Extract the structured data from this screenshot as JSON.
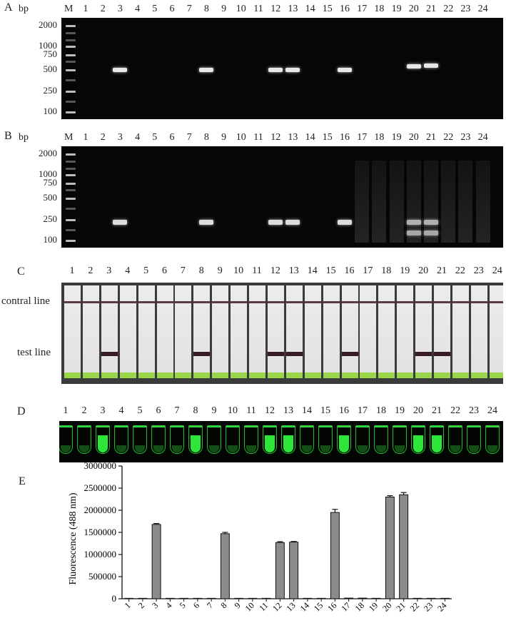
{
  "panels": {
    "a": "A",
    "b": "B",
    "c": "C",
    "d": "D",
    "e": "E"
  },
  "gel_a": {
    "bp_label": "bp",
    "marker_label": "M",
    "lanes": [
      "1",
      "2",
      "3",
      "4",
      "5",
      "6",
      "7",
      "8",
      "9",
      "10",
      "11",
      "12",
      "13",
      "14",
      "15",
      "16",
      "17",
      "18",
      "19",
      "20",
      "21",
      "22",
      "23",
      "24"
    ],
    "ladder": [
      "2000",
      "1000",
      "750",
      "500",
      "250",
      "100"
    ],
    "positive_lanes": [
      "3",
      "8",
      "12",
      "13",
      "16",
      "20",
      "21"
    ]
  },
  "gel_b": {
    "bp_label": "bp",
    "marker_label": "M",
    "lanes": [
      "1",
      "2",
      "3",
      "4",
      "5",
      "6",
      "7",
      "8",
      "9",
      "10",
      "11",
      "12",
      "13",
      "14",
      "15",
      "16",
      "17",
      "18",
      "19",
      "20",
      "21",
      "22",
      "23",
      "24"
    ],
    "ladder": [
      "2000",
      "1000",
      "750",
      "500",
      "250",
      "100"
    ],
    "positive_lanes": [
      "3",
      "8",
      "12",
      "13",
      "16",
      "20",
      "21"
    ]
  },
  "strips": {
    "lanes": [
      "1",
      "2",
      "3",
      "4",
      "5",
      "6",
      "7",
      "8",
      "9",
      "10",
      "11",
      "12",
      "13",
      "14",
      "15",
      "16",
      "17",
      "18",
      "19",
      "20",
      "21",
      "22",
      "23",
      "24"
    ],
    "control_label": "contral line",
    "test_label": "test line",
    "positive_lanes": [
      "3",
      "8",
      "12",
      "13",
      "16",
      "20",
      "21"
    ]
  },
  "tubes": {
    "lanes": [
      "1",
      "2",
      "3",
      "4",
      "5",
      "6",
      "7",
      "8",
      "9",
      "10",
      "11",
      "12",
      "13",
      "14",
      "15",
      "16",
      "17",
      "18",
      "19",
      "20",
      "21",
      "22",
      "23",
      "24"
    ],
    "positive_lanes": [
      "3",
      "8",
      "12",
      "13",
      "16",
      "20",
      "21"
    ]
  },
  "chart_data": {
    "type": "bar",
    "categories": [
      "1",
      "2",
      "3",
      "4",
      "5",
      "6",
      "7",
      "8",
      "9",
      "10",
      "11",
      "12",
      "13",
      "14",
      "15",
      "16",
      "17",
      "18",
      "19",
      "20",
      "21",
      "22",
      "23",
      "24"
    ],
    "values": [
      10000,
      10000,
      1680000,
      10000,
      10000,
      10000,
      10000,
      1470000,
      10000,
      10000,
      10000,
      1270000,
      1280000,
      10000,
      10000,
      1950000,
      15000,
      15000,
      10000,
      2300000,
      2350000,
      10000,
      10000,
      10000
    ],
    "errors": [
      0,
      0,
      20000,
      0,
      0,
      0,
      0,
      30000,
      0,
      0,
      0,
      20000,
      15000,
      0,
      0,
      70000,
      0,
      0,
      0,
      30000,
      50000,
      0,
      0,
      0
    ],
    "ylabel": "Fluorescence (488 nm)",
    "ylim": [
      0,
      3000000
    ],
    "yticks": [
      "0",
      "500000",
      "1000000",
      "1500000",
      "2000000",
      "2500000",
      "3000000"
    ],
    "bar_color": "#8c8c8c"
  }
}
